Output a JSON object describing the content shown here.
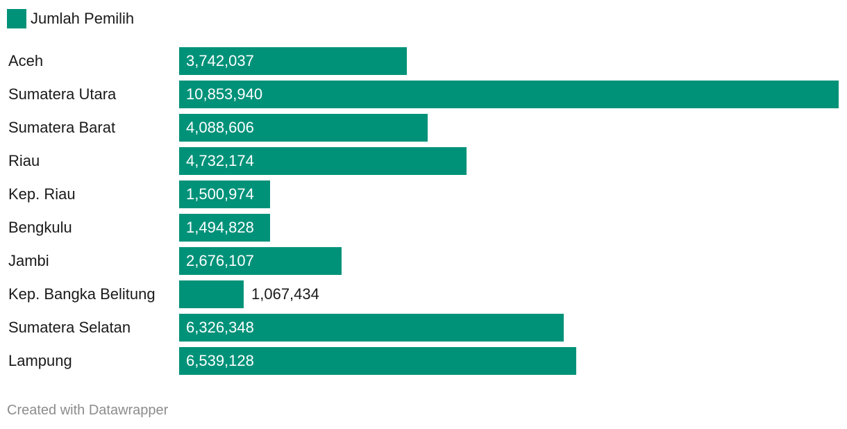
{
  "legend": {
    "label": "Jumlah Pemilih",
    "color": "#009279"
  },
  "chart_data": {
    "type": "bar",
    "orientation": "horizontal",
    "categories": [
      "Aceh",
      "Sumatera Utara",
      "Sumatera Barat",
      "Riau",
      "Kep. Riau",
      "Bengkulu",
      "Jambi",
      "Kep. Bangka Belitung",
      "Sumatera Selatan",
      "Lampung"
    ],
    "series": [
      {
        "name": "Jumlah Pemilih",
        "color": "#009279",
        "values": [
          3742037,
          10853940,
          4088606,
          4732174,
          1500974,
          1494828,
          2676107,
          1067434,
          6326348,
          6539128
        ]
      }
    ],
    "value_labels": [
      "3,742,037",
      "10,853,940",
      "4,088,606",
      "4,732,174",
      "1,500,974",
      "1,494,828",
      "2,676,107",
      "1,067,434",
      "6,326,348",
      "6,539,128"
    ],
    "xlim": [
      0,
      10853940
    ],
    "grid": false,
    "legend_position": "top-left"
  },
  "footer": {
    "credit": "Created with Datawrapper"
  }
}
